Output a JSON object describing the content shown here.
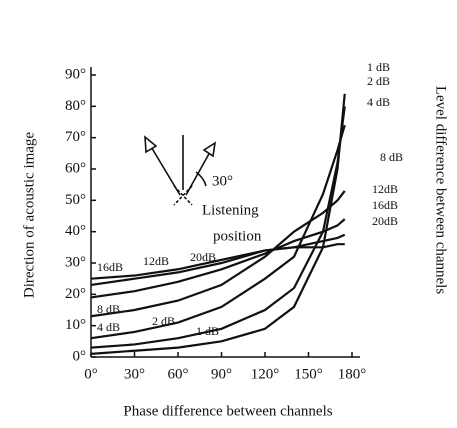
{
  "chart_data": {
    "type": "line",
    "x_label": "Phase difference between channels",
    "y_label": "Direction of acoustic image",
    "right_label": "Level difference between channels",
    "annotations": [
      "30°",
      "Listening",
      "position"
    ],
    "x": [
      0,
      30,
      60,
      90,
      120,
      140,
      160,
      170,
      175
    ],
    "series": [
      {
        "name": "1 dB",
        "color": "#111111",
        "values": [
          1,
          2,
          3,
          5,
          9,
          16,
          35,
          60,
          84
        ]
      },
      {
        "name": "2 dB",
        "color": "#111111",
        "values": [
          3,
          4,
          6,
          9,
          15,
          22,
          40,
          62,
          80
        ]
      },
      {
        "name": "4 dB",
        "color": "#111111",
        "values": [
          6,
          8,
          11,
          16,
          25,
          32,
          52,
          66,
          74
        ]
      },
      {
        "name": "8 dB",
        "color": "#111111",
        "values": [
          13,
          15,
          18,
          23,
          32,
          40,
          46,
          50,
          53
        ]
      },
      {
        "name": "12dB",
        "color": "#111111",
        "values": [
          19,
          21,
          24,
          28,
          33,
          37,
          40,
          42,
          44
        ]
      },
      {
        "name": "16dB",
        "color": "#111111",
        "values": [
          23,
          25,
          27,
          30,
          34,
          35,
          37,
          38,
          39
        ]
      },
      {
        "name": "20dB",
        "color": "#111111",
        "values": [
          25,
          26,
          28,
          31,
          34,
          35,
          35,
          36,
          36
        ]
      }
    ],
    "xlim": [
      0,
      180
    ],
    "xticks": [
      {
        "value": 0,
        "label": "0°"
      },
      {
        "value": 30,
        "label": "30°"
      },
      {
        "value": 60,
        "label": "60°"
      },
      {
        "value": 90,
        "label": "90°"
      },
      {
        "value": 120,
        "label": "120°"
      },
      {
        "value": 150,
        "label": "150°"
      },
      {
        "value": 180,
        "label": "180°"
      }
    ],
    "ylim": [
      0,
      90
    ],
    "yticks": [
      {
        "value": 0,
        "label": "0°"
      },
      {
        "value": 10,
        "label": "10°"
      },
      {
        "value": 20,
        "label": "20°"
      },
      {
        "value": 30,
        "label": "30°"
      },
      {
        "value": 40,
        "label": "40°"
      },
      {
        "value": 50,
        "label": "50°"
      },
      {
        "value": 60,
        "label": "60°"
      },
      {
        "value": 70,
        "label": "70°"
      },
      {
        "value": 80,
        "label": "80°"
      },
      {
        "value": 90,
        "label": "90°"
      }
    ],
    "grid": false
  }
}
